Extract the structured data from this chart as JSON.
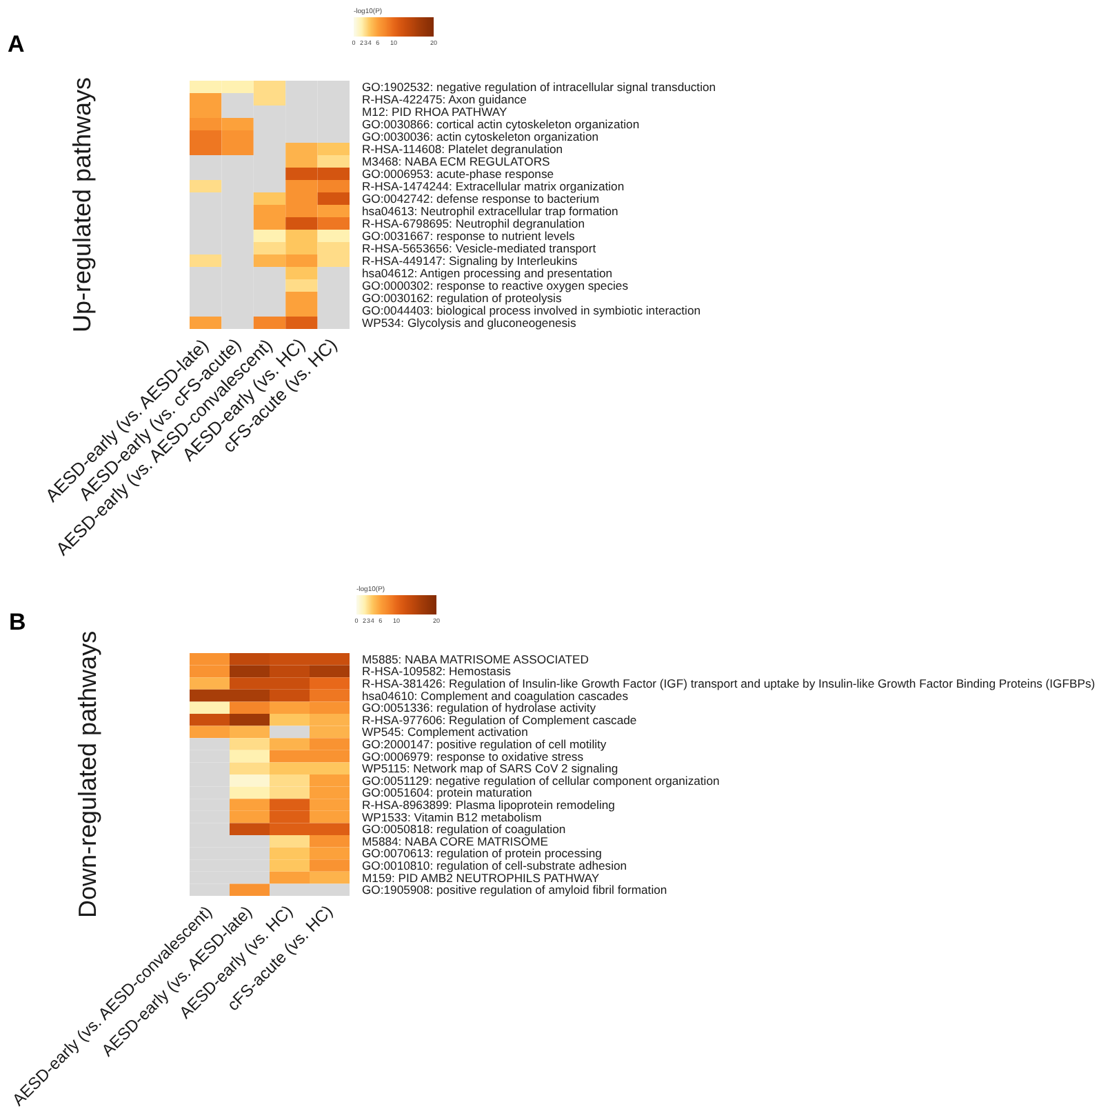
{
  "chart_data": [
    {
      "type": "heatmap",
      "title": "A",
      "ylabel": "Up-regulated pathways",
      "clabel": "-log10(P)",
      "clim": [
        0,
        20
      ],
      "cticks": [
        0,
        2,
        3,
        4,
        6,
        10,
        20
      ],
      "categories": [
        "AESD-early (vs. AESD-late)",
        "AESD-early (vs. cFS-acute)",
        "AESD-early (vs. AESD-convalescent)",
        "AESD-early (vs. HC)",
        "cFS-acute (vs. HC)"
      ],
      "y_categories": [
        "GO:1902532: negative regulation of intracellular signal transduction",
        "R-HSA-422475: Axon guidance",
        "M12: PID RHOA PATHWAY",
        "GO:0030866: cortical actin cytoskeleton organization",
        "GO:0030036: actin cytoskeleton organization",
        "R-HSA-114608: Platelet degranulation",
        "M3468: NABA ECM REGULATORS",
        "GO:0006953: acute-phase response",
        "R-HSA-1474244: Extracellular matrix organization",
        "GO:0042742: defense response to bacterium",
        "hsa04613: Neutrophil extracellular trap formation",
        "R-HSA-6798695: Neutrophil degranulation",
        "GO:0031667: response to nutrient levels",
        "R-HSA-5653656: Vesicle-mediated transport",
        "R-HSA-449147: Signaling by Interleukins",
        "hsa04612: Antigen processing and presentation",
        "GO:0000302: response to reactive oxygen species",
        "GO:0030162: regulation of proteolysis",
        "GO:0044403: biological process involved in symbiotic interaction",
        "WP534: Glycolysis and gluconeogenesis"
      ],
      "cells": [
        [
          2,
          2,
          3,
          null,
          null
        ],
        [
          6,
          null,
          3,
          null,
          null
        ],
        [
          6,
          null,
          null,
          null,
          null
        ],
        [
          7,
          6,
          null,
          null,
          null
        ],
        [
          9,
          7,
          null,
          null,
          null
        ],
        [
          9,
          7,
          null,
          5,
          4
        ],
        [
          null,
          null,
          null,
          5,
          3
        ],
        [
          null,
          null,
          null,
          12,
          12
        ],
        [
          3,
          null,
          null,
          7,
          8
        ],
        [
          null,
          null,
          4,
          7,
          12
        ],
        [
          null,
          null,
          6,
          7,
          6
        ],
        [
          null,
          null,
          6,
          12,
          9
        ],
        [
          null,
          null,
          2,
          4,
          2
        ],
        [
          null,
          null,
          3,
          4,
          3
        ],
        [
          3,
          null,
          5,
          6,
          3
        ],
        [
          null,
          null,
          null,
          4,
          null
        ],
        [
          null,
          null,
          null,
          3,
          null
        ],
        [
          null,
          null,
          null,
          6,
          null
        ],
        [
          null,
          null,
          null,
          6,
          null
        ],
        [
          6,
          null,
          8,
          11,
          null
        ]
      ]
    },
    {
      "type": "heatmap",
      "title": "B",
      "ylabel": "Down-regulated pathways",
      "clabel": "-log10(P)",
      "clim": [
        0,
        20
      ],
      "cticks": [
        0,
        2,
        3,
        4,
        6,
        10,
        20
      ],
      "categories": [
        "AESD-early (vs. AESD-convalescent)",
        "AESD-early (vs. AESD-late)",
        "AESD-early (vs. HC)",
        "cFS-acute (vs. HC)"
      ],
      "y_categories": [
        "M5885: NABA MATRISOME ASSOCIATED",
        "R-HSA-109582: Hemostasis",
        "R-HSA-381426: Regulation of Insulin-like Growth Factor (IGF) transport and uptake by Insulin-like Growth Factor Binding Proteins (IGFBPs)",
        "hsa04610: Complement and coagulation cascades",
        "GO:0051336: regulation of hydrolase activity",
        "R-HSA-977606: Regulation of Complement cascade",
        "WP545: Complement activation",
        "GO:2000147: positive regulation of cell motility",
        "GO:0006979: response to oxidative stress",
        "WP5115: Network map of SARS CoV 2 signaling",
        "GO:0051129: negative regulation of cellular component organization",
        "GO:0051604: protein maturation",
        "R-HSA-8963899: Plasma lipoprotein remodeling",
        "WP1533: Vitamin B12 metabolism",
        "GO:0050818: regulation of coagulation",
        "M5884: NABA CORE MATRISOME",
        "GO:0070613: regulation of protein processing",
        "GO:0010810: regulation of cell-substrate adhesion",
        "M159: PID AMB2 NEUTROPHILS PATHWAY",
        "GO:1905908: positive regulation of amyloid fibril formation"
      ],
      "cells": [
        [
          7,
          14,
          13,
          13
        ],
        [
          7,
          17,
          14,
          16
        ],
        [
          5,
          13,
          13,
          10
        ],
        [
          16,
          16,
          13,
          9
        ],
        [
          2,
          8,
          6,
          7
        ],
        [
          13,
          17,
          4,
          5
        ],
        [
          6,
          5,
          null,
          5
        ],
        [
          null,
          3,
          5,
          7
        ],
        [
          null,
          2,
          7,
          7
        ],
        [
          null,
          3,
          4,
          4
        ],
        [
          null,
          1,
          3,
          6
        ],
        [
          null,
          2,
          3,
          6
        ],
        [
          null,
          6,
          11,
          6
        ],
        [
          null,
          6,
          11,
          6
        ],
        [
          null,
          13,
          11,
          11
        ],
        [
          null,
          null,
          3,
          7
        ],
        [
          null,
          null,
          4,
          6
        ],
        [
          null,
          null,
          4,
          7
        ],
        [
          null,
          null,
          6,
          5
        ],
        [
          null,
          7,
          null,
          null
        ]
      ]
    }
  ]
}
